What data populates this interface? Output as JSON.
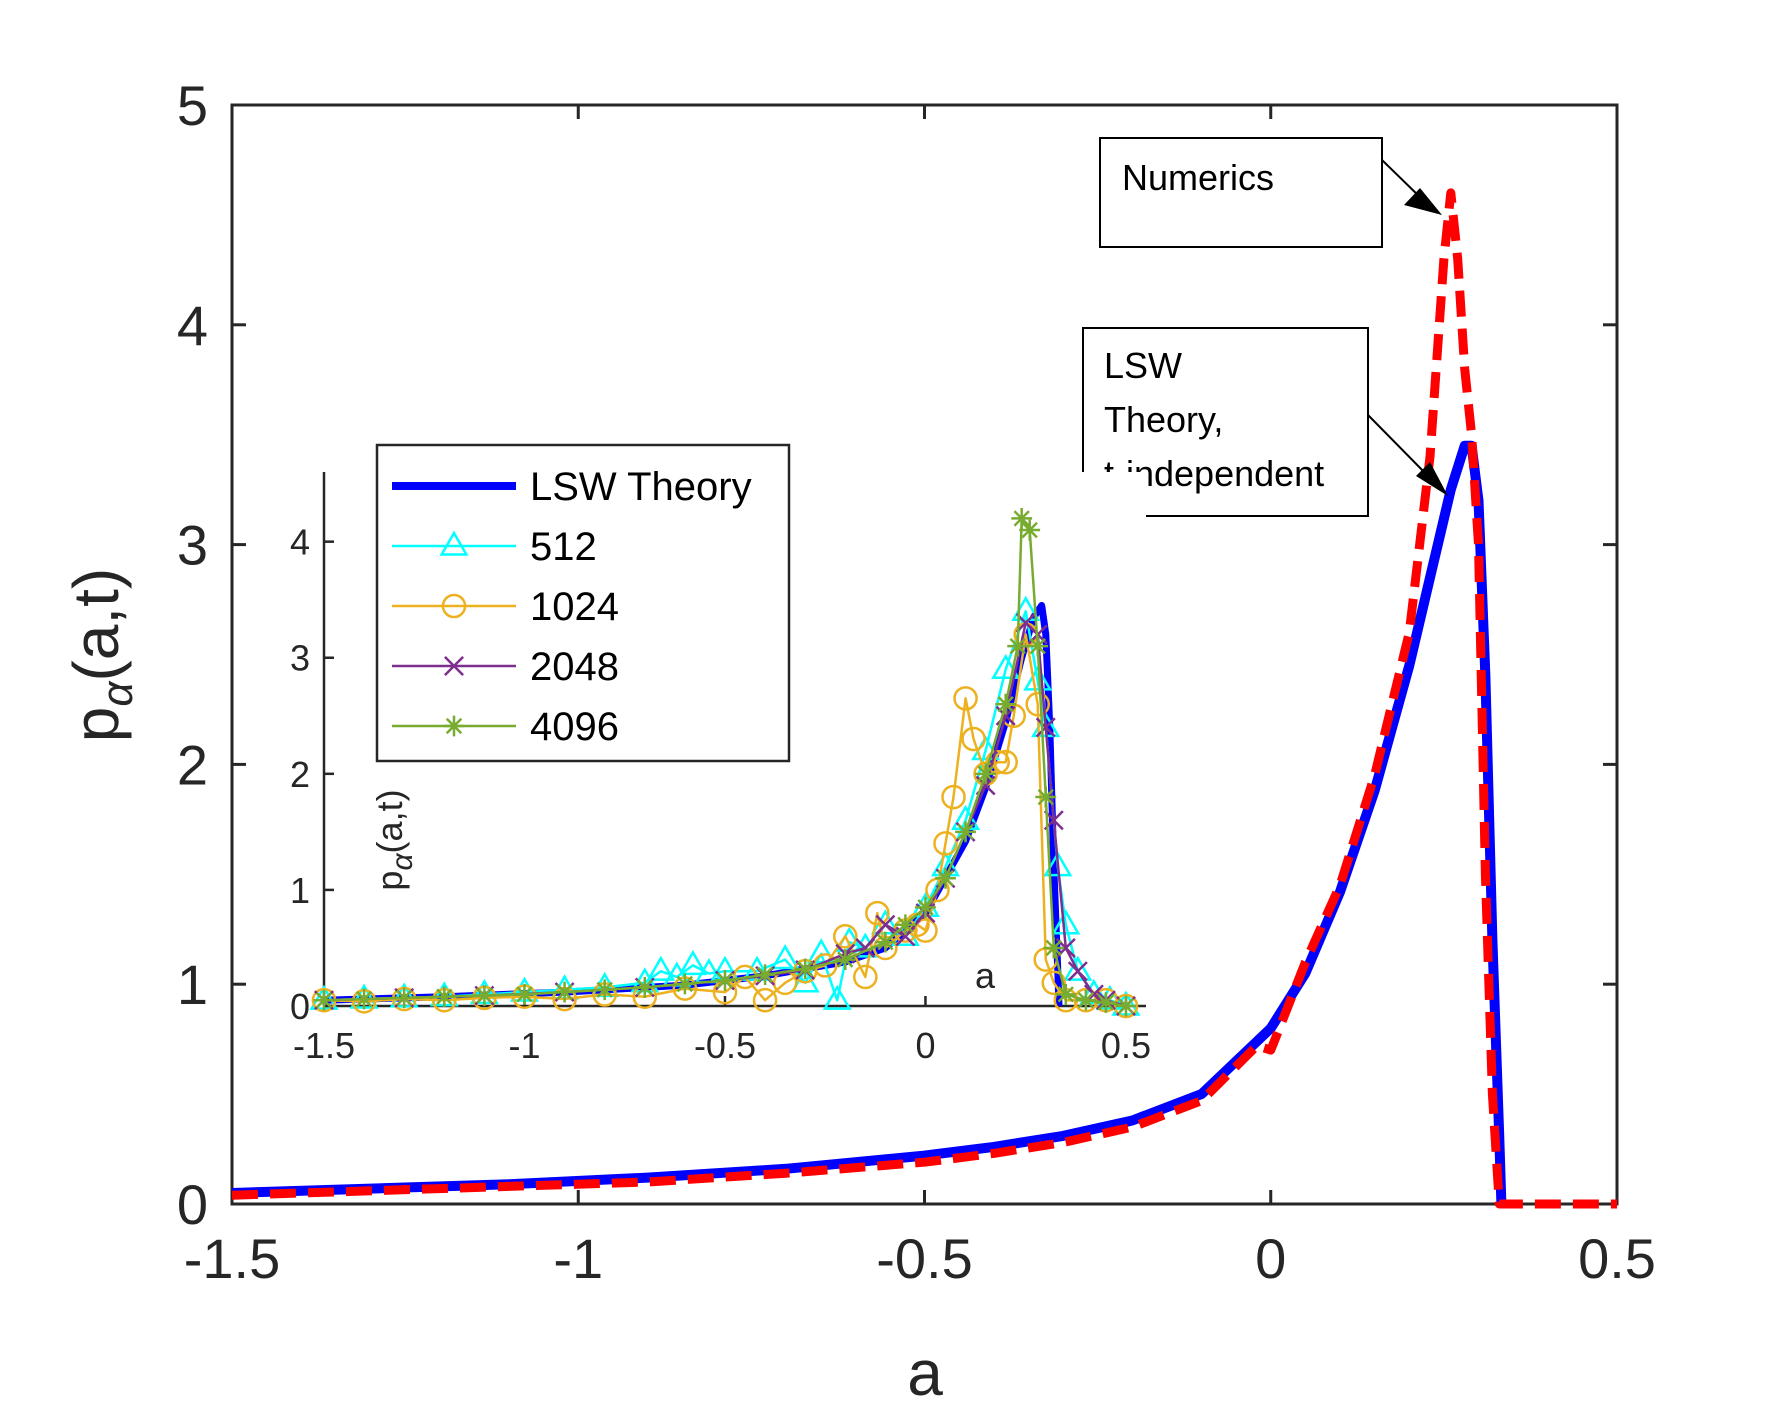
{
  "chart_data": [
    {
      "id": "main",
      "type": "line",
      "title": "",
      "xlabel": "a",
      "ylabel_base": "p",
      "ylabel_sub": "α",
      "ylabel_rest": "(a,t)",
      "xlim": [
        -1.5,
        0.5
      ],
      "ylim": [
        0,
        5
      ],
      "xticks": [
        -1.5,
        -1,
        -0.5,
        0,
        0.5
      ],
      "xtick_labels": [
        "-1.5",
        "-1",
        "-0.5",
        "0",
        "0.5"
      ],
      "yticks": [
        0,
        1,
        2,
        3,
        4,
        5
      ],
      "ytick_labels": [
        "0",
        "1",
        "2",
        "3",
        "4",
        "5"
      ],
      "series": [
        {
          "name": "LSW Theory",
          "color": "#0000ff",
          "style": "solid",
          "x": [
            -1.5,
            -1.3,
            -1.1,
            -0.9,
            -0.7,
            -0.5,
            -0.4,
            -0.3,
            -0.2,
            -0.1,
            0.0,
            0.05,
            0.1,
            0.15,
            0.2,
            0.23,
            0.26,
            0.28,
            0.29,
            0.3,
            0.31,
            0.32,
            0.33,
            0.333
          ],
          "y": [
            0.05,
            0.07,
            0.09,
            0.12,
            0.16,
            0.22,
            0.26,
            0.31,
            0.38,
            0.5,
            0.8,
            1.05,
            1.42,
            1.88,
            2.45,
            2.85,
            3.25,
            3.45,
            3.45,
            3.2,
            2.4,
            1.2,
            0.3,
            0.0
          ]
        },
        {
          "name": "Numerics",
          "color": "#ff0000",
          "style": "dashed",
          "x": [
            -1.5,
            -1.3,
            -1.1,
            -0.9,
            -0.7,
            -0.5,
            -0.4,
            -0.3,
            -0.2,
            -0.1,
            -0.02,
            0.0,
            0.05,
            0.1,
            0.15,
            0.2,
            0.23,
            0.25,
            0.26,
            0.27,
            0.28,
            0.29,
            0.3,
            0.31,
            0.32,
            0.33,
            0.35,
            0.4,
            0.45,
            0.5
          ],
          "y": [
            0.04,
            0.06,
            0.08,
            0.1,
            0.14,
            0.19,
            0.23,
            0.28,
            0.35,
            0.47,
            0.72,
            0.7,
            1.1,
            1.45,
            1.95,
            2.6,
            3.4,
            4.3,
            4.6,
            4.3,
            3.8,
            3.5,
            3.0,
            1.5,
            0.5,
            0.0,
            0.0,
            0.0,
            0.0,
            0.0
          ]
        }
      ],
      "annotations": [
        {
          "label": "Numerics",
          "lines": [
            "Numerics"
          ]
        },
        {
          "label": "LSW Theory, t-independent",
          "lines": [
            "LSW",
            "Theory,",
            "t-independent"
          ]
        }
      ]
    },
    {
      "id": "inset",
      "type": "line",
      "xlabel": "a",
      "ylabel_base": "p",
      "ylabel_sub": "α",
      "ylabel_rest": "(a,t)",
      "xlim": [
        -1.5,
        0.55
      ],
      "ylim": [
        0,
        4.6
      ],
      "xticks": [
        -1.5,
        -1,
        -0.5,
        0,
        0.5
      ],
      "xtick_labels": [
        "-1.5",
        "-1",
        "-0.5",
        "0",
        "0.5"
      ],
      "yticks": [
        0,
        1,
        2,
        3,
        4
      ],
      "ytick_labels": [
        "0",
        "1",
        "2",
        "3",
        "4"
      ],
      "legend": [
        "LSW Theory",
        "512",
        "1024",
        "2048",
        "4096"
      ],
      "series": [
        {
          "name": "LSW Theory",
          "color": "#0000ff",
          "marker": "none",
          "x": [
            -1.5,
            -1.2,
            -0.9,
            -0.6,
            -0.4,
            -0.2,
            -0.1,
            0.0,
            0.1,
            0.15,
            0.2,
            0.24,
            0.27,
            0.29,
            0.3,
            0.31,
            0.32,
            0.33,
            0.333
          ],
          "y": [
            0.05,
            0.08,
            0.12,
            0.18,
            0.26,
            0.38,
            0.5,
            0.8,
            1.42,
            1.88,
            2.45,
            3.0,
            3.35,
            3.45,
            3.2,
            2.4,
            1.2,
            0.3,
            0.0
          ]
        },
        {
          "name": "512",
          "color": "#00ffff",
          "marker": "triangle",
          "x": [
            -1.5,
            -1.4,
            -1.3,
            -1.2,
            -1.1,
            -1.0,
            -0.9,
            -0.8,
            -0.7,
            -0.66,
            -0.62,
            -0.58,
            -0.54,
            -0.5,
            -0.42,
            -0.35,
            -0.3,
            -0.26,
            -0.22,
            -0.19,
            -0.15,
            -0.1,
            -0.05,
            0.0,
            0.05,
            0.1,
            0.15,
            0.2,
            0.25,
            0.28,
            0.3,
            0.33,
            0.35,
            0.38,
            0.42,
            0.46,
            0.5
          ],
          "y": [
            0.05,
            0.06,
            0.07,
            0.08,
            0.1,
            0.12,
            0.14,
            0.16,
            0.2,
            0.3,
            0.25,
            0.35,
            0.28,
            0.3,
            0.3,
            0.4,
            0.2,
            0.45,
            0.05,
            0.55,
            0.5,
            0.7,
            0.6,
            0.85,
            1.2,
            1.6,
            2.2,
            2.9,
            3.4,
            2.8,
            2.4,
            1.2,
            0.7,
            0.3,
            0.1,
            0.05,
            0.0
          ]
        },
        {
          "name": "1024",
          "color": "#edb120",
          "marker": "circle",
          "x": [
            -1.5,
            -1.4,
            -1.3,
            -1.2,
            -1.1,
            -1.0,
            -0.9,
            -0.8,
            -0.7,
            -0.6,
            -0.5,
            -0.45,
            -0.4,
            -0.35,
            -0.3,
            -0.25,
            -0.2,
            -0.15,
            -0.12,
            -0.1,
            -0.05,
            -0.02,
            0.0,
            0.03,
            0.05,
            0.07,
            0.1,
            0.12,
            0.15,
            0.18,
            0.2,
            0.22,
            0.25,
            0.28,
            0.3,
            0.32,
            0.35,
            0.4,
            0.45,
            0.5
          ],
          "y": [
            0.05,
            0.04,
            0.06,
            0.05,
            0.07,
            0.08,
            0.06,
            0.1,
            0.08,
            0.15,
            0.12,
            0.25,
            0.05,
            0.2,
            0.3,
            0.35,
            0.6,
            0.25,
            0.8,
            0.5,
            0.65,
            0.7,
            0.65,
            1.0,
            1.4,
            1.8,
            2.65,
            2.3,
            2.0,
            2.1,
            2.1,
            2.5,
            3.2,
            2.6,
            0.4,
            0.2,
            0.05,
            0.05,
            0.05,
            0.0
          ]
        },
        {
          "name": "2048",
          "color": "#7e2f8e",
          "marker": "cross",
          "x": [
            -1.5,
            -1.3,
            -1.1,
            -0.9,
            -0.7,
            -0.5,
            -0.4,
            -0.3,
            -0.2,
            -0.15,
            -0.1,
            -0.05,
            0.0,
            0.05,
            0.1,
            0.15,
            0.2,
            0.25,
            0.28,
            0.3,
            0.32,
            0.35,
            0.38,
            0.42,
            0.45,
            0.5
          ],
          "y": [
            0.05,
            0.07,
            0.09,
            0.12,
            0.16,
            0.22,
            0.26,
            0.31,
            0.45,
            0.5,
            0.7,
            0.6,
            0.8,
            1.1,
            1.5,
            1.9,
            2.5,
            3.3,
            3.2,
            2.4,
            1.6,
            0.5,
            0.3,
            0.1,
            0.05,
            0.0
          ]
        },
        {
          "name": "4096",
          "color": "#77ac30",
          "marker": "star",
          "x": [
            -1.5,
            -1.4,
            -1.3,
            -1.2,
            -1.1,
            -1.0,
            -0.9,
            -0.8,
            -0.7,
            -0.6,
            -0.5,
            -0.4,
            -0.3,
            -0.2,
            -0.1,
            -0.05,
            0.0,
            0.05,
            0.1,
            0.15,
            0.2,
            0.23,
            0.24,
            0.26,
            0.28,
            0.3,
            0.32,
            0.35,
            0.4,
            0.45,
            0.5
          ],
          "y": [
            0.05,
            0.06,
            0.07,
            0.08,
            0.09,
            0.1,
            0.12,
            0.14,
            0.16,
            0.19,
            0.22,
            0.27,
            0.32,
            0.4,
            0.55,
            0.7,
            0.85,
            1.1,
            1.5,
            2.0,
            2.6,
            3.1,
            4.2,
            4.1,
            3.1,
            1.8,
            0.5,
            0.1,
            0.05,
            0.03,
            0.0
          ]
        }
      ]
    }
  ]
}
